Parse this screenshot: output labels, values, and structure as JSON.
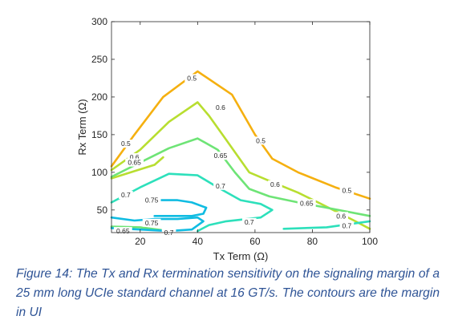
{
  "caption": "Figure 14: The Tx and Rx termination sensitivity on the signaling margin of a 25 mm long UCIe standard channel at 16 GT/s. The contours are the margin in UI",
  "chart_data": {
    "type": "contour",
    "title": "",
    "xlabel": "Tx Term (Ω)",
    "ylabel": "Rx Term (Ω)",
    "xlim": [
      10,
      100
    ],
    "ylim": [
      20,
      300
    ],
    "xticks": [
      20,
      40,
      60,
      80,
      100
    ],
    "yticks": [
      50,
      100,
      150,
      200,
      250,
      300
    ],
    "grid": false,
    "box": true,
    "levels": [
      {
        "level": 0.5,
        "label": "0.5",
        "color": "#f5b010",
        "lines": [
          {
            "points": [
              [
                10,
                108
              ],
              [
                18,
                150
              ],
              [
                28,
                200
              ],
              [
                40,
                234
              ],
              [
                52,
                203
              ],
              [
                60,
                150
              ],
              [
                66,
                118
              ],
              [
                75,
                100
              ],
              [
                88,
                80
              ],
              [
                100,
                65
              ]
            ],
            "labels": [
              [
                15,
                138
              ],
              [
                38,
                225
              ],
              [
                62,
                142
              ],
              [
                92,
                76
              ]
            ]
          }
        ]
      },
      {
        "level": 0.6,
        "label": "0.6",
        "color": "#b8de30",
        "lines": [
          {
            "points": [
              [
                10,
                103
              ],
              [
                20,
                130
              ],
              [
                30,
                167
              ],
              [
                40,
                193
              ],
              [
                44,
                175
              ],
              [
                50,
                143
              ],
              [
                58,
                100
              ],
              [
                66,
                87
              ],
              [
                75,
                73
              ],
              [
                82,
                60
              ],
              [
                95,
                35
              ],
              [
                100,
                25
              ]
            ]
          },
          {
            "points": [
              [
                10,
                92
              ],
              [
                25,
                110
              ],
              [
                28,
                120
              ]
            ],
            "labels": [
              [
                18,
                120
              ],
              [
                48,
                186
              ],
              [
                67,
                84
              ],
              [
                90,
                42
              ]
            ]
          }
        ]
      },
      {
        "level": 0.65,
        "label": "0.65",
        "color": "#6ee476",
        "lines": [
          {
            "points": [
              [
                10,
                94
              ],
              [
                20,
                113
              ],
              [
                30,
                132
              ],
              [
                40,
                145
              ],
              [
                47,
                130
              ],
              [
                53,
                100
              ],
              [
                58,
                78
              ],
              [
                65,
                68
              ],
              [
                75,
                60
              ],
              [
                85,
                53
              ],
              [
                100,
                42
              ]
            ],
            "labels": [
              [
                18,
                113
              ],
              [
                48,
                122
              ],
              [
                78,
                59
              ],
              [
                14,
                22
              ]
            ]
          },
          {
            "points": [
              [
                10,
                28
              ],
              [
                20,
                27
              ],
              [
                30,
                22
              ]
            ]
          }
        ]
      },
      {
        "level": 0.7,
        "label": "0.7",
        "color": "#2de0bb",
        "lines": [
          {
            "points": [
              [
                10,
                60
              ],
              [
                20,
                80
              ],
              [
                30,
                98
              ],
              [
                40,
                96
              ],
              [
                47,
                80
              ],
              [
                55,
                63
              ],
              [
                62,
                58
              ],
              [
                66,
                50
              ],
              [
                62,
                40
              ],
              [
                50,
                35
              ],
              [
                44,
                30
              ],
              [
                40,
                22
              ]
            ],
            "labels": [
              [
                15,
                70
              ],
              [
                48,
                82
              ],
              [
                58,
                34
              ],
              [
                30,
                20
              ]
            ]
          },
          {
            "points": [
              [
                70,
                25
              ],
              [
                85,
                27
              ],
              [
                100,
                35
              ]
            ],
            "labels": [
              [
                92,
                29
              ]
            ]
          }
        ]
      },
      {
        "level": 0.75,
        "label": "0.75",
        "color": "#10bce2",
        "lines": [
          {
            "points": [
              [
                10,
                40
              ],
              [
                18,
                36
              ],
              [
                25,
                38
              ],
              [
                33,
                38
              ],
              [
                40,
                40
              ],
              [
                42,
                35
              ],
              [
                38,
                24
              ],
              [
                30,
                22
              ],
              [
                20,
                24
              ],
              [
                10,
                26
              ]
            ],
            "labels": [
              [
                24,
                33
              ]
            ]
          },
          {
            "points": [
              [
                25,
                63
              ],
              [
                33,
                63
              ],
              [
                38,
                60
              ],
              [
                43,
                53
              ],
              [
                42,
                45
              ],
              [
                38,
                42
              ],
              [
                30,
                42
              ],
              [
                25,
                42
              ]
            ],
            "labels": [
              [
                24,
                63
              ]
            ]
          }
        ]
      }
    ]
  }
}
